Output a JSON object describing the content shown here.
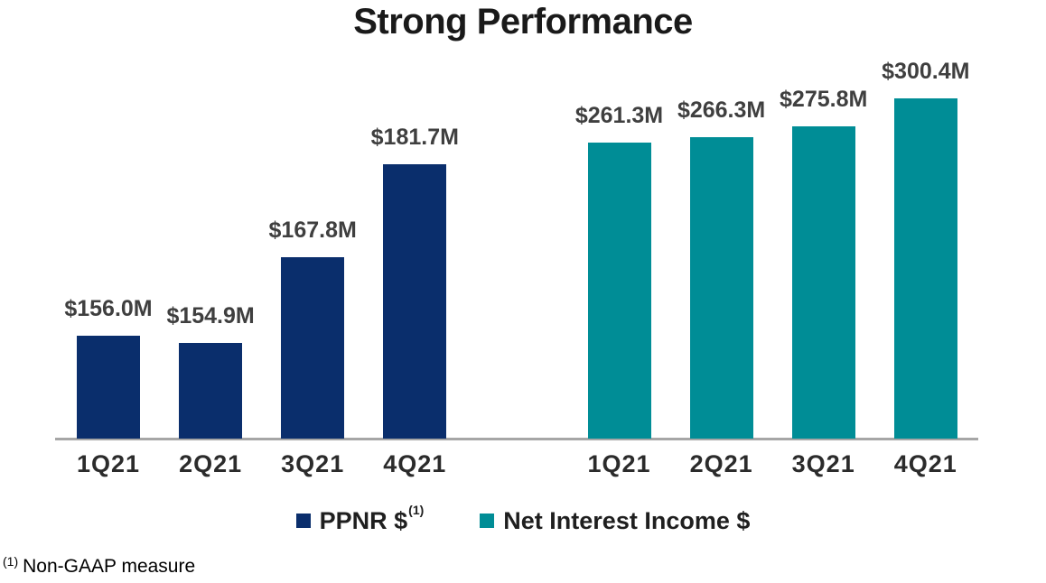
{
  "title": "Strong Performance",
  "legend": {
    "items": [
      {
        "label": "PPNR $",
        "sup": "(1)",
        "color": "#0a2e6c"
      },
      {
        "label": "Net Interest Income $",
        "sup": "",
        "color": "#008d96"
      }
    ]
  },
  "footnote": {
    "sup": "(1)",
    "text": "Non-GAAP measure"
  },
  "colors": {
    "ppnr_navy": "#0a2e6c",
    "nii_teal": "#008d96",
    "axis_gray": "#a6a6a6",
    "label_gray": "#3f3f3f"
  },
  "chart_data": {
    "type": "bar",
    "title": "Strong Performance",
    "categories": [
      "1Q21",
      "2Q21",
      "3Q21",
      "4Q21"
    ],
    "series": [
      {
        "name": "PPNR $",
        "color": "#0a2e6c",
        "values": [
          156.0,
          154.9,
          167.8,
          181.7
        ],
        "labels": [
          "$156.0M",
          "$154.9M",
          "$167.8M",
          "$181.7M"
        ]
      },
      {
        "name": "Net Interest Income $",
        "color": "#008d96",
        "values": [
          261.3,
          266.3,
          275.8,
          300.4
        ],
        "labels": [
          "$261.3M",
          "$266.3M",
          "$275.8M",
          "$300.4M"
        ]
      }
    ],
    "unit": "USD millions",
    "xlabel": "",
    "ylabel": "",
    "grid": false,
    "legend_position": "bottom",
    "layout_hint": "two bar groups side by side sharing one baseline; each group labeled 1Q21-4Q21; value labels above bars; footnote marks PPNR as non-GAAP"
  }
}
